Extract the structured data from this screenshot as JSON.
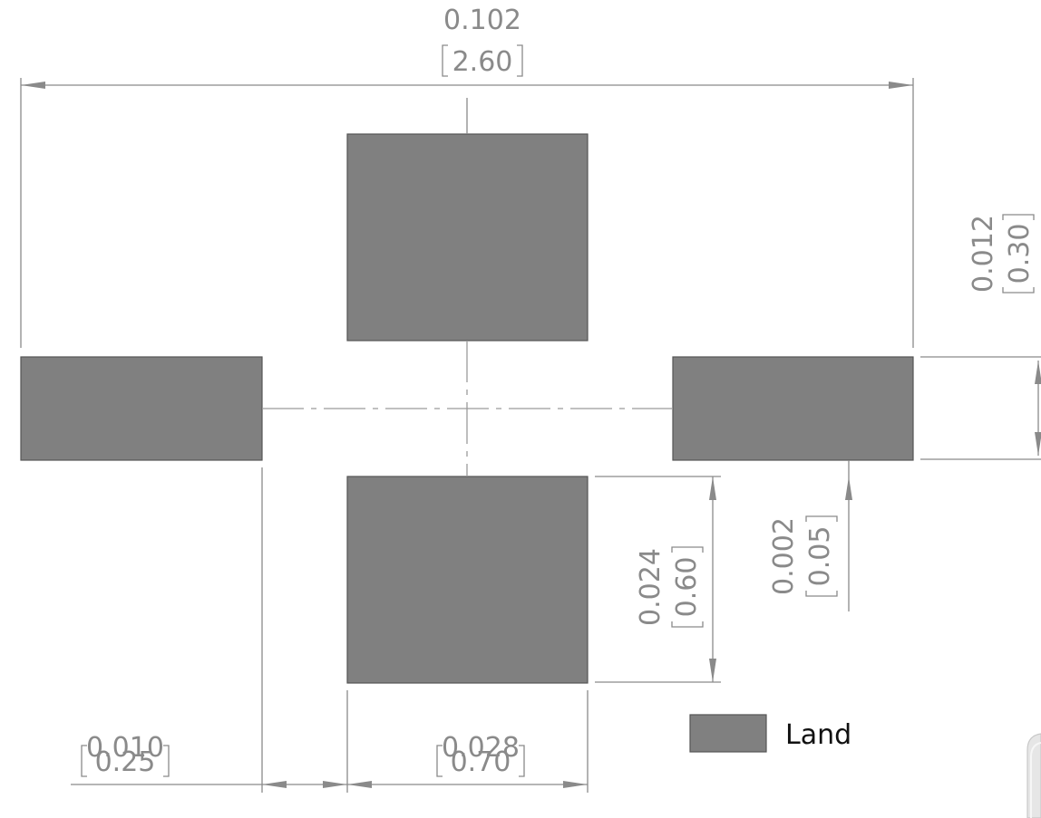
{
  "colors": {
    "land": "#808080",
    "land_stroke": "#555555",
    "dimension": "#8a8a8a",
    "legend_text": "#111111"
  },
  "dimensions": {
    "overall_width": {
      "inch": "0.102",
      "mm": "2.60"
    },
    "side_pad_height": {
      "inch": "0.012",
      "mm": "0.30"
    },
    "center_pad_height": {
      "inch": "0.024",
      "mm": "0.60"
    },
    "pad_offset": {
      "inch": "0.002",
      "mm": "0.05"
    },
    "side_gap": {
      "inch": "0.010",
      "mm": "0.25"
    },
    "center_pad_width": {
      "inch": "0.028",
      "mm": "0.70"
    }
  },
  "legend": {
    "label": "Land"
  }
}
